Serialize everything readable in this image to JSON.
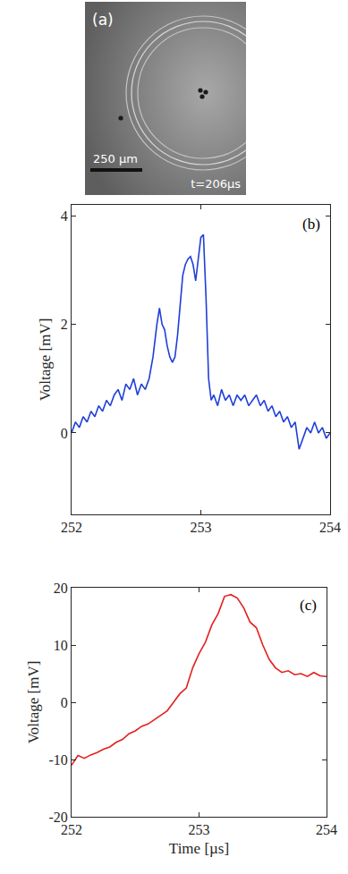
{
  "image_panel": {
    "label": "(a)",
    "scale_bar": "250 µm",
    "time": "t=206µs"
  },
  "chart_data": [
    {
      "type": "line",
      "annotations": [
        "(b)"
      ],
      "y_label": "Voltage [mV]",
      "xlim": [
        252,
        254
      ],
      "xticks": [
        252,
        253,
        254
      ],
      "ylim": [
        -1.5,
        4.2
      ],
      "yticks": [
        0,
        2,
        4
      ],
      "grid": false,
      "series": [
        {
          "color": "#1f3fd8",
          "x": [
            252.0,
            252.03,
            252.06,
            252.09,
            252.12,
            252.15,
            252.18,
            252.21,
            252.24,
            252.27,
            252.3,
            252.33,
            252.36,
            252.39,
            252.42,
            252.45,
            252.48,
            252.51,
            252.54,
            252.57,
            252.6,
            252.63,
            252.66,
            252.68,
            252.7,
            252.72,
            252.74,
            252.76,
            252.78,
            252.8,
            252.82,
            252.84,
            252.86,
            252.88,
            252.9,
            252.92,
            252.94,
            252.96,
            252.98,
            253.0,
            253.02,
            253.04,
            253.06,
            253.08,
            253.1,
            253.13,
            253.16,
            253.19,
            253.22,
            253.25,
            253.28,
            253.31,
            253.34,
            253.37,
            253.4,
            253.43,
            253.46,
            253.49,
            253.52,
            253.55,
            253.58,
            253.61,
            253.64,
            253.67,
            253.7,
            253.73,
            253.76,
            253.79,
            253.82,
            253.85,
            253.88,
            253.91,
            253.94,
            253.97,
            254.0
          ],
          "values": [
            0.0,
            0.2,
            0.1,
            0.3,
            0.2,
            0.4,
            0.3,
            0.5,
            0.4,
            0.6,
            0.5,
            0.7,
            0.8,
            0.6,
            0.9,
            0.8,
            1.0,
            0.7,
            0.9,
            0.8,
            1.0,
            1.4,
            2.0,
            2.3,
            2.0,
            1.9,
            1.6,
            1.4,
            1.3,
            1.4,
            1.8,
            2.4,
            2.9,
            3.1,
            3.2,
            3.25,
            3.1,
            2.8,
            3.2,
            3.6,
            3.65,
            2.5,
            1.0,
            0.6,
            0.7,
            0.5,
            0.8,
            0.6,
            0.7,
            0.5,
            0.7,
            0.6,
            0.7,
            0.5,
            0.6,
            0.7,
            0.5,
            0.6,
            0.4,
            0.5,
            0.3,
            0.4,
            0.2,
            0.3,
            0.1,
            0.2,
            -0.3,
            -0.1,
            0.1,
            0.0,
            0.2,
            0.0,
            0.1,
            -0.1,
            0.0
          ]
        }
      ]
    },
    {
      "type": "line",
      "annotations": [
        "(c)"
      ],
      "x_label": "Time [µs]",
      "y_label": "Voltage [mV]",
      "xlim": [
        252,
        254
      ],
      "xticks": [
        252,
        253,
        254
      ],
      "ylim": [
        -20,
        20
      ],
      "yticks": [
        -20,
        -10,
        0,
        10,
        20
      ],
      "grid": false,
      "series": [
        {
          "color": "#e3201f",
          "x": [
            252.0,
            252.05,
            252.1,
            252.15,
            252.2,
            252.25,
            252.3,
            252.35,
            252.4,
            252.45,
            252.5,
            252.55,
            252.6,
            252.65,
            252.7,
            252.75,
            252.8,
            252.85,
            252.9,
            252.95,
            253.0,
            253.05,
            253.1,
            253.15,
            253.2,
            253.25,
            253.3,
            253.35,
            253.4,
            253.45,
            253.5,
            253.55,
            253.6,
            253.65,
            253.7,
            253.75,
            253.8,
            253.85,
            253.9,
            253.95,
            254.0
          ],
          "values": [
            -11,
            -9.3,
            -9.8,
            -9.2,
            -8.8,
            -8.2,
            -7.8,
            -7.0,
            -6.5,
            -5.5,
            -5.0,
            -4.2,
            -3.8,
            -3.0,
            -2.2,
            -1.5,
            0.0,
            1.5,
            2.5,
            6.0,
            8.5,
            10.5,
            13.5,
            15.5,
            18.5,
            18.8,
            18.2,
            16.5,
            14.0,
            13.0,
            10.0,
            7.5,
            6.0,
            5.2,
            5.5,
            4.8,
            5.0,
            4.5,
            5.2,
            4.6,
            4.5
          ]
        }
      ]
    }
  ]
}
